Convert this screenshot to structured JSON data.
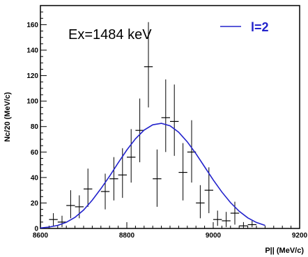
{
  "chart_data": {
    "type": "scatter",
    "annotation": "Ex=1484 keV",
    "xlabel": "P|| (MeV/c)",
    "ylabel": "Nc/20 (MeV/c)",
    "xlim": [
      8600,
      9200
    ],
    "ylim": [
      0,
      175
    ],
    "x_ticks": [
      "8600",
      "8800",
      "9000",
      "9200"
    ],
    "y_ticks": [
      "0",
      "20",
      "40",
      "60",
      "80",
      "100",
      "120",
      "140",
      "160"
    ],
    "grid": false,
    "legend": {
      "position": "top-right",
      "entries": [
        {
          "label": "l=2",
          "color": "#2222cc"
        }
      ]
    },
    "series": [
      {
        "kind": "data-points",
        "color": "#000000",
        "x": [
          8630,
          8650,
          8670,
          8690,
          8710,
          8750,
          8770,
          8790,
          8810,
          8830,
          8850,
          8870,
          8890,
          8910,
          8930,
          8950,
          8970,
          8990,
          9010,
          9030,
          9050,
          9070,
          9090
        ],
        "y": [
          7,
          5,
          18,
          17,
          31,
          29,
          39,
          42,
          56,
          77,
          127,
          39,
          87,
          84,
          44,
          60,
          20,
          30,
          7,
          6,
          12,
          2,
          3
        ],
        "x_err": [
          10,
          10,
          10,
          10,
          10,
          10,
          10,
          10,
          10,
          10,
          10,
          10,
          10,
          10,
          10,
          10,
          10,
          10,
          10,
          10,
          10,
          10,
          10
        ],
        "y_err_low": [
          5,
          4,
          10,
          9,
          14,
          14,
          17,
          18,
          20,
          25,
          32,
          22,
          27,
          27,
          22,
          24,
          12,
          18,
          5,
          5,
          9,
          2,
          2
        ],
        "y_err_high": [
          5,
          5,
          12,
          9,
          16,
          14,
          17,
          21,
          22,
          25,
          35,
          23,
          30,
          29,
          23,
          25,
          14,
          18,
          7,
          7,
          9,
          3,
          3
        ]
      },
      {
        "kind": "fit-curve",
        "name": "l=2",
        "color": "#2222cc",
        "x": [
          8600,
          8620,
          8640,
          8660,
          8680,
          8700,
          8720,
          8740,
          8760,
          8780,
          8800,
          8820,
          8840,
          8860,
          8880,
          8900,
          8920,
          8940,
          8960,
          8980,
          9000,
          9020,
          9040,
          9060,
          9080,
          9100,
          9120
        ],
        "y": [
          0.4,
          1.1,
          2.4,
          4.8,
          8.7,
          14.5,
          22.2,
          31.2,
          41.0,
          51.5,
          61.6,
          70.4,
          77.2,
          81.4,
          82.5,
          80.6,
          75.6,
          68.0,
          58.7,
          48.4,
          38.1,
          28.6,
          20.3,
          13.5,
          8.3,
          4.7,
          2.4
        ]
      }
    ]
  }
}
